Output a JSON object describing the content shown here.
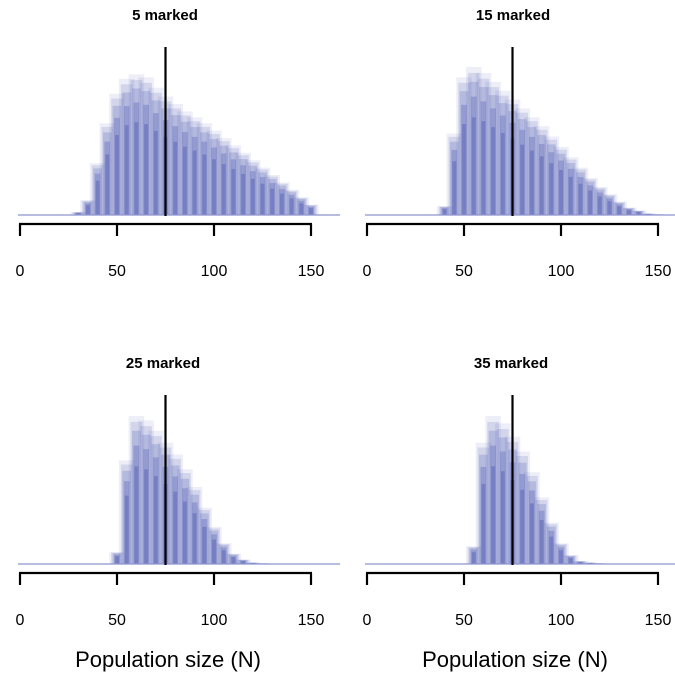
{
  "chart_data": [
    {
      "type": "area",
      "title": "5 marked",
      "xlabel": "",
      "ylabel": "",
      "xlim": [
        0,
        155
      ],
      "xticks": [
        0,
        50,
        100,
        150
      ],
      "reference_line_x": 75,
      "bin_width": 5,
      "x": [
        30,
        35,
        40,
        45,
        50,
        55,
        60,
        65,
        70,
        75,
        80,
        85,
        90,
        95,
        100,
        105,
        110,
        115,
        120,
        125,
        130,
        135,
        140,
        145,
        150
      ],
      "density": [
        0.02,
        0.1,
        0.35,
        0.62,
        0.82,
        0.92,
        0.95,
        0.93,
        0.86,
        0.8,
        0.75,
        0.7,
        0.66,
        0.62,
        0.57,
        0.52,
        0.47,
        0.42,
        0.37,
        0.32,
        0.27,
        0.22,
        0.17,
        0.12,
        0.07
      ],
      "color": "#4a55b0",
      "grid": false
    },
    {
      "type": "area",
      "title": "15 marked",
      "xlabel": "",
      "ylabel": "",
      "xlim": [
        0,
        155
      ],
      "xticks": [
        0,
        50,
        100,
        150
      ],
      "reference_line_x": 75,
      "bin_width": 5,
      "x": [
        40,
        45,
        50,
        55,
        60,
        65,
        70,
        75,
        80,
        85,
        90,
        95,
        100,
        105,
        110,
        115,
        120,
        125,
        130,
        135,
        140,
        145,
        150
      ],
      "density": [
        0.06,
        0.55,
        0.93,
        1.0,
        0.96,
        0.9,
        0.84,
        0.78,
        0.72,
        0.66,
        0.6,
        0.53,
        0.46,
        0.39,
        0.32,
        0.25,
        0.19,
        0.14,
        0.09,
        0.05,
        0.03,
        0.01,
        0.005
      ],
      "color": "#4a55b0",
      "grid": false
    },
    {
      "type": "area",
      "title": "25 marked",
      "xlabel": "Population size (N)",
      "ylabel": "",
      "xlim": [
        0,
        155
      ],
      "xticks": [
        0,
        50,
        100,
        150
      ],
      "reference_line_x": 75,
      "bin_width": 5,
      "x": [
        50,
        55,
        60,
        65,
        70,
        75,
        80,
        85,
        90,
        95,
        100,
        105,
        110,
        115,
        120,
        125
      ],
      "density": [
        0.08,
        0.7,
        1.0,
        0.97,
        0.9,
        0.82,
        0.74,
        0.64,
        0.52,
        0.38,
        0.25,
        0.14,
        0.07,
        0.03,
        0.01,
        0.005
      ],
      "color": "#4a55b0",
      "grid": false
    },
    {
      "type": "area",
      "title": "35 marked",
      "xlabel": "Population size (N)",
      "ylabel": "",
      "xlim": [
        0,
        155
      ],
      "xticks": [
        0,
        50,
        100,
        150
      ],
      "reference_line_x": 75,
      "bin_width": 5,
      "x": [
        55,
        60,
        65,
        70,
        75,
        80,
        85,
        90,
        95,
        100,
        105,
        110,
        115,
        120
      ],
      "density": [
        0.12,
        0.82,
        1.0,
        0.95,
        0.86,
        0.76,
        0.62,
        0.45,
        0.28,
        0.14,
        0.06,
        0.02,
        0.01,
        0.005
      ],
      "color": "#4a55b0",
      "grid": false
    }
  ]
}
